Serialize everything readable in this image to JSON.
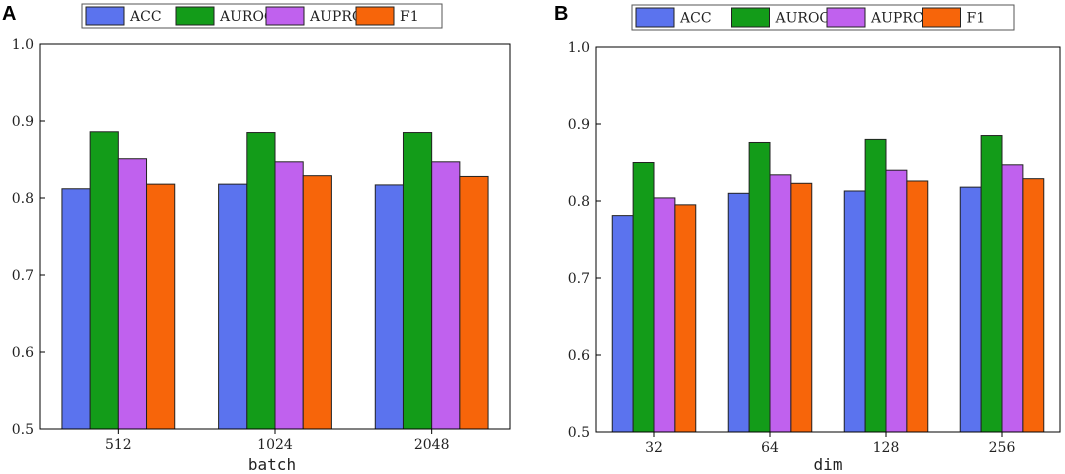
{
  "colors": {
    "ACC": "#5b73ee",
    "AUROC": "#139c19",
    "AUPRC": "#c061ee",
    "F1": "#f7650a"
  },
  "legend": [
    "ACC",
    "AUROC",
    "AUPRC",
    "F1"
  ],
  "chart_data": [
    {
      "panel": "A",
      "type": "bar",
      "xlabel": "batch",
      "ylabel": "",
      "ylim": [
        0.5,
        1.0
      ],
      "yticks": [
        "0.5",
        "0.6",
        "0.7",
        "0.8",
        "0.9",
        "1.0"
      ],
      "categories": [
        "512",
        "1024",
        "2048"
      ],
      "series": [
        {
          "name": "ACC",
          "values": [
            0.812,
            0.818,
            0.817
          ]
        },
        {
          "name": "AUROC",
          "values": [
            0.886,
            0.885,
            0.885
          ]
        },
        {
          "name": "AUPRC",
          "values": [
            0.851,
            0.847,
            0.847
          ]
        },
        {
          "name": "F1",
          "values": [
            0.818,
            0.829,
            0.828
          ]
        }
      ]
    },
    {
      "panel": "B",
      "type": "bar",
      "xlabel": "dim",
      "ylabel": "",
      "ylim": [
        0.5,
        1.0
      ],
      "yticks": [
        "0.5",
        "0.6",
        "0.7",
        "0.8",
        "0.9",
        "1.0"
      ],
      "categories": [
        "32",
        "64",
        "128",
        "256"
      ],
      "series": [
        {
          "name": "ACC",
          "values": [
            0.781,
            0.81,
            0.813,
            0.818
          ]
        },
        {
          "name": "AUROC",
          "values": [
            0.85,
            0.876,
            0.88,
            0.885
          ]
        },
        {
          "name": "AUPRC",
          "values": [
            0.804,
            0.834,
            0.84,
            0.847
          ]
        },
        {
          "name": "F1",
          "values": [
            0.795,
            0.823,
            0.826,
            0.829
          ]
        }
      ]
    }
  ]
}
